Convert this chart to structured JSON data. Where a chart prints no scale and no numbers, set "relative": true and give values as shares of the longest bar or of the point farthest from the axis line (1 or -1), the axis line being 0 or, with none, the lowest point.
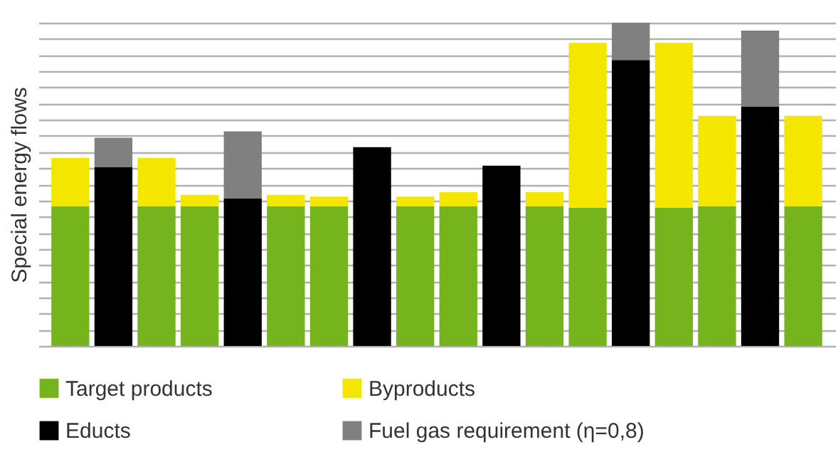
{
  "chart_data": {
    "type": "bar",
    "stacked": true,
    "relative": true,
    "ylabel": "Special energy flows",
    "grid": "y",
    "legend": "bottom",
    "tick_labels": false,
    "categories": [
      null,
      null,
      null,
      null,
      null,
      null,
      null,
      null,
      null,
      null,
      null,
      null,
      null,
      null,
      null,
      null,
      null,
      null
    ],
    "series": [
      {
        "name": "Target products",
        "color": "#76b41e",
        "values": [
          0.433,
          null,
          0.433,
          0.433,
          null,
          0.433,
          0.433,
          null,
          0.433,
          0.433,
          null,
          0.433,
          0.428,
          null,
          0.428,
          0.433,
          null,
          0.433
        ]
      },
      {
        "name": "Byproducts",
        "color": "#f5e600",
        "values": [
          0.149,
          null,
          0.149,
          0.034,
          null,
          0.034,
          0.029,
          null,
          0.029,
          0.043,
          null,
          0.043,
          0.51,
          null,
          0.51,
          0.279,
          null,
          0.279
        ]
      },
      {
        "name": "Educts",
        "color": "#000000",
        "values": [
          null,
          0.553,
          null,
          null,
          0.457,
          null,
          null,
          0.615,
          null,
          null,
          0.558,
          null,
          null,
          0.885,
          null,
          null,
          0.74,
          null
        ]
      },
      {
        "name": "Fuel gas requirement (η=0,8)",
        "color": "#808080",
        "values": [
          null,
          0.091,
          null,
          null,
          0.207,
          null,
          null,
          null,
          null,
          null,
          null,
          null,
          null,
          0.115,
          null,
          null,
          0.236,
          null
        ]
      }
    ]
  }
}
